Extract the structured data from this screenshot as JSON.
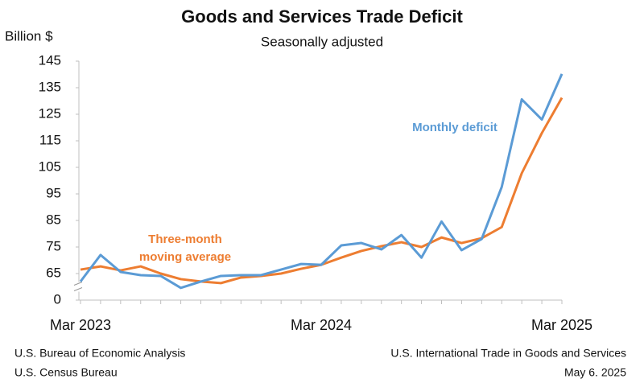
{
  "chart_data": {
    "type": "line",
    "title": "Goods and Services Trade Deficit",
    "subtitle": "Seasonally adjusted",
    "y_label": "Billion $",
    "categories": [
      "Mar 2023",
      null,
      null,
      null,
      null,
      null,
      null,
      null,
      null,
      null,
      null,
      null,
      "Mar 2024",
      null,
      null,
      null,
      null,
      null,
      null,
      null,
      null,
      null,
      null,
      null,
      "Mar 2025"
    ],
    "series": [
      {
        "name": "Monthly deficit",
        "color": "#5b9bd5",
        "values": [
          62,
          72,
          65.6,
          64.4,
          64.1,
          59.6,
          62,
          64.1,
          64.4,
          64.4,
          66.5,
          68.6,
          68.3,
          75.6,
          76.5,
          74.1,
          79.5,
          71,
          84.6,
          73.8,
          78,
          97.6,
          130.6,
          123,
          140.2
        ]
      },
      {
        "name": "Three-month moving average",
        "color": "#ed7d31",
        "values": [
          66.5,
          67.7,
          66.2,
          67.7,
          65,
          62.9,
          62,
          61.4,
          63.5,
          64.1,
          65,
          66.8,
          68.3,
          71,
          73.5,
          75.3,
          76.8,
          75,
          78.6,
          76.5,
          78.3,
          82.5,
          102.8,
          117.9,
          131.2
        ]
      }
    ],
    "ylim": [
      0,
      145
    ],
    "yticks": [
      0,
      65,
      75,
      85,
      95,
      105,
      115,
      125,
      135,
      145
    ],
    "axis_break": true,
    "footer_left": [
      "U.S. Bureau of Economic Analysis",
      "U.S. Census Bureau"
    ],
    "footer_right": [
      "U.S. International Trade in Goods and Services",
      "May 6. 2025"
    ]
  }
}
